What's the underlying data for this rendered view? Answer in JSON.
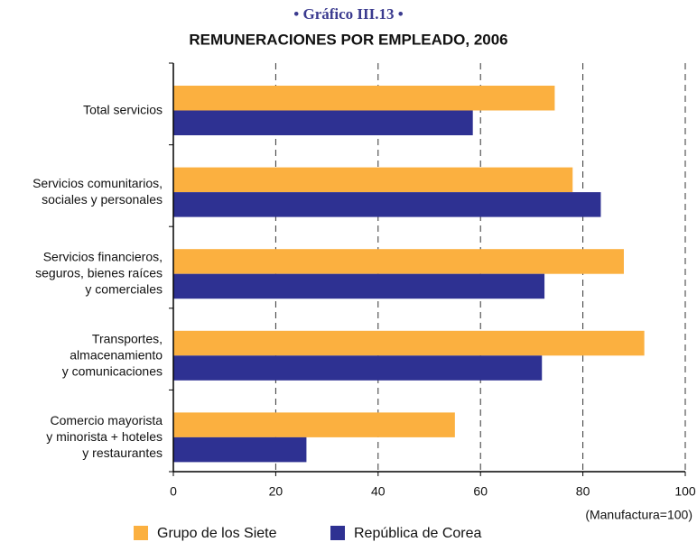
{
  "chart_data": {
    "type": "hbar",
    "supertitle": "• Gráfico III.13 •",
    "title": "REMUNERACIONES POR EMPLEADO, 2006",
    "categories": [
      [
        "Total servicios"
      ],
      [
        "Servicios comunitarios,",
        "sociales y personales"
      ],
      [
        "Servicios financieros,",
        "seguros, bienes raíces",
        "y comerciales"
      ],
      [
        "Transportes,",
        "almacenamiento",
        "y comunicaciones"
      ],
      [
        "Comercio mayorista",
        "y minorista + hoteles",
        "y restaurantes"
      ]
    ],
    "series": [
      {
        "name": "Grupo de los Siete",
        "color": "#fbb040",
        "values": [
          74.5,
          78,
          88,
          92,
          55
        ]
      },
      {
        "name": "República de Corea",
        "color": "#2e3192",
        "values": [
          58.5,
          83.5,
          72.5,
          72,
          26
        ]
      }
    ],
    "xlabel": "(Manufactura=100)",
    "xlim": [
      0,
      100
    ],
    "xticks": [
      0,
      20,
      40,
      60,
      80,
      100
    ],
    "grid": true,
    "legend": "bottom"
  }
}
